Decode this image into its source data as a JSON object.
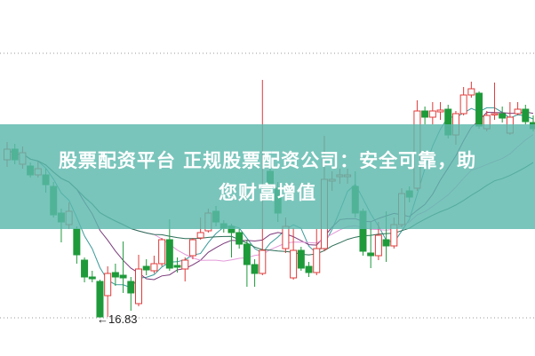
{
  "banner": {
    "line1": "股票配资平台 正规股票配资公司：安全可靠，助",
    "line2": "您财富增值"
  },
  "chart_data": {
    "type": "candlestick",
    "title": "",
    "xlabel": "",
    "ylabel": "",
    "grid": false,
    "annotations": [
      {
        "text": "←16.83",
        "refers_to": "period low"
      }
    ],
    "colors": {
      "up": "#e03a3a",
      "down": "#1e9a3a",
      "ma5": "#3a9a9a",
      "ma10": "#7a3a7a",
      "ma20": "#e39ad9",
      "ma30": "#2c6e58"
    },
    "moving_averages": [
      "MA5",
      "MA10",
      "MA20",
      "MA30"
    ],
    "ohlc": [
      [
        20.37,
        20.61,
        20.77,
        20.21
      ],
      [
        20.61,
        20.37,
        20.73,
        20.27
      ],
      [
        20.27,
        20.53,
        20.67,
        20.17
      ],
      [
        20.23,
        20.03,
        20.31,
        19.97
      ],
      [
        20.03,
        20.17,
        20.33,
        19.97
      ],
      [
        20.03,
        19.81,
        20.17,
        19.63
      ],
      [
        19.77,
        19.13,
        19.87,
        19.07
      ],
      [
        19.17,
        18.97,
        19.27,
        18.51
      ],
      [
        18.91,
        19.21,
        19.41,
        18.81
      ],
      [
        18.81,
        18.23,
        18.87,
        18.03
      ],
      [
        18.11,
        17.73,
        18.17,
        17.61
      ],
      [
        17.73,
        17.69,
        17.87,
        17.61
      ],
      [
        17.63,
        16.83,
        17.67,
        16.83
      ],
      [
        17.31,
        17.81,
        17.97,
        16.83
      ],
      [
        17.83,
        17.73,
        18.03,
        17.53
      ],
      [
        17.77,
        17.71,
        18.53,
        17.37
      ],
      [
        17.63,
        17.37,
        17.73,
        16.97
      ],
      [
        17.13,
        17.91,
        18.23,
        17.07
      ],
      [
        17.97,
        17.89,
        18.13,
        17.77
      ],
      [
        17.87,
        18.03,
        18.21,
        17.81
      ],
      [
        18.03,
        18.57,
        18.61,
        17.97
      ],
      [
        18.57,
        17.93,
        19.03,
        17.87
      ],
      [
        17.99,
        17.95,
        18.17,
        17.83
      ],
      [
        17.91,
        18.11,
        18.17,
        17.63
      ],
      [
        18.21,
        18.57,
        18.61,
        18.13
      ],
      [
        18.61,
        18.73,
        19.07,
        18.57
      ],
      [
        18.77,
        19.17,
        19.27,
        18.73
      ],
      [
        19.21,
        18.97,
        19.33,
        18.87
      ],
      [
        18.93,
        18.83,
        19.01,
        18.73
      ],
      [
        18.87,
        18.73,
        18.93,
        18.17
      ],
      [
        18.73,
        18.47,
        18.81,
        18.37
      ],
      [
        18.47,
        18.01,
        18.57,
        17.51
      ],
      [
        18.01,
        17.81,
        18.13,
        17.51
      ],
      [
        17.81,
        18.33,
        22.17,
        17.77
      ],
      [
        20.11,
        19.83,
        20.27,
        19.67
      ],
      [
        19.73,
        19.17,
        19.87,
        18.97
      ],
      [
        18.37,
        18.87,
        19.07,
        18.27
      ],
      [
        17.71,
        18.33,
        18.83,
        17.67
      ],
      [
        18.33,
        17.93,
        18.41,
        17.87
      ],
      [
        17.97,
        17.83,
        18.07,
        17.73
      ],
      [
        17.83,
        18.37,
        18.81,
        17.77
      ],
      [
        18.37,
        19.93,
        20.91,
        18.31
      ],
      [
        19.89,
        19.93,
        20.11,
        19.67
      ],
      [
        19.99,
        20.03,
        20.17,
        19.83
      ],
      [
        19.99,
        20.03,
        20.17,
        19.83
      ],
      [
        19.77,
        19.17,
        20.11,
        19.07
      ],
      [
        19.21,
        18.31,
        19.27,
        18.21
      ],
      [
        18.27,
        18.21,
        18.97,
        17.93
      ],
      [
        18.21,
        18.67,
        18.97,
        18.11
      ],
      [
        18.57,
        18.43,
        19.21,
        18.07
      ],
      [
        18.43,
        18.91,
        19.07,
        18.37
      ],
      [
        18.91,
        19.61,
        19.73,
        18.85
      ],
      [
        19.67,
        19.53,
        19.77,
        19.41
      ],
      [
        19.73,
        21.47,
        21.71,
        19.67
      ],
      [
        21.47,
        21.33,
        21.57,
        21.17
      ],
      [
        21.33,
        21.47,
        21.67,
        21.17
      ],
      [
        21.45,
        21.49,
        21.67,
        21.27
      ],
      [
        21.51,
        20.93,
        21.61,
        20.85
      ],
      [
        20.93,
        21.41,
        21.47,
        20.71
      ],
      [
        21.41,
        21.83,
        22.01,
        21.37
      ],
      [
        21.83,
        21.97,
        22.13,
        21.77
      ],
      [
        21.87,
        21.13,
        21.91,
        21.07
      ],
      [
        21.07,
        21.37,
        21.47,
        21.01
      ],
      [
        21.39,
        21.41,
        22.11,
        21.27
      ],
      [
        21.41,
        21.31,
        21.57,
        21.21
      ],
      [
        20.97,
        21.33,
        21.67,
        20.93
      ],
      [
        21.41,
        21.51,
        21.67,
        21.37
      ],
      [
        21.51,
        21.23,
        21.61,
        21.17
      ],
      [
        21.21,
        21.07,
        21.37,
        21.01
      ]
    ],
    "low_marker": 16.83
  }
}
